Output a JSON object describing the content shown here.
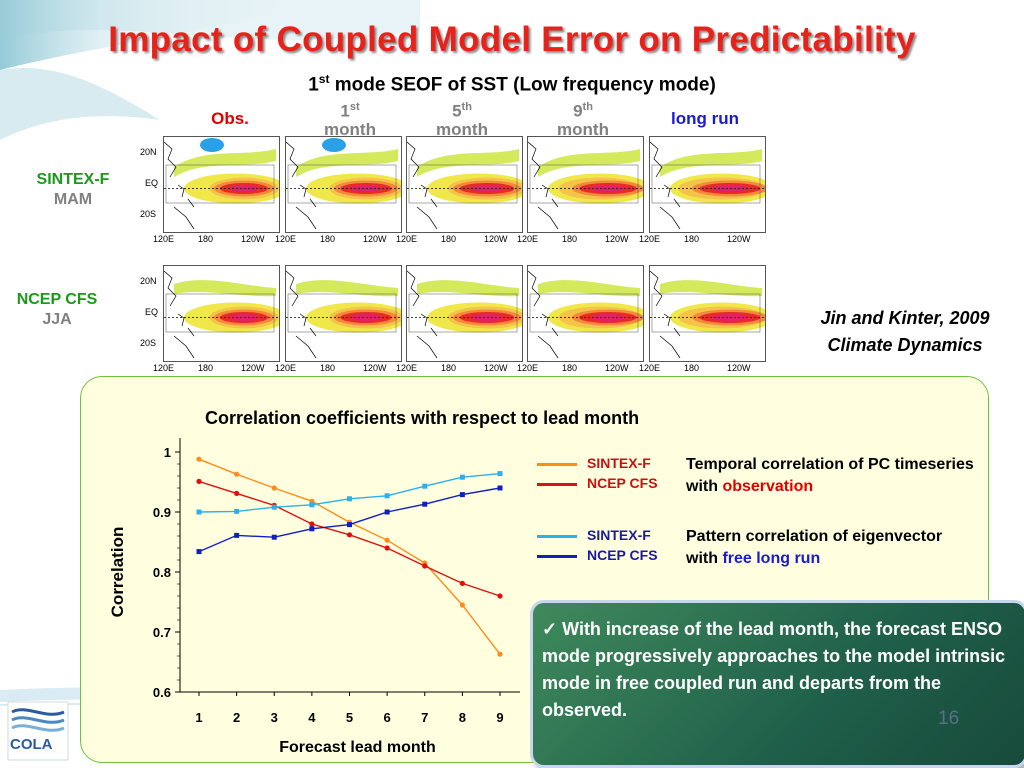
{
  "slide": {
    "title": "Impact of Coupled Model Error on Predictability",
    "subtitle_pre": "1",
    "subtitle_sup": "st",
    "subtitle_post": " mode SEOF of SST (Low frequency mode)",
    "columns": [
      {
        "label": "Obs.",
        "sup": "",
        "line2": "",
        "color": "#e00000"
      },
      {
        "label": "1",
        "sup": "st",
        "line2": "month",
        "color": "#808080"
      },
      {
        "label": "5",
        "sup": "th",
        "line2": "month",
        "color": "#808080"
      },
      {
        "label": "9",
        "sup": "th",
        "line2": "month",
        "color": "#808080"
      },
      {
        "label": "long run",
        "sup": "",
        "line2": "",
        "color": "#1a1ad0"
      }
    ],
    "rows": [
      {
        "name": "SINTEX-F",
        "season": "MAM"
      },
      {
        "name": "NCEP CFS",
        "season": "JJA"
      }
    ],
    "lat_labels": [
      "20N",
      "EQ",
      "20S"
    ],
    "lon_labels": [
      "120E",
      "180",
      "120W"
    ],
    "citation_line1": "Jin and Kinter, 2009",
    "citation_line2": "Climate Dynamics",
    "page_number": "16",
    "logo_text": "COLA"
  },
  "legend": {
    "group1": {
      "s1": "SINTEX-F",
      "s2": "NCEP CFS",
      "note_pre": "Temporal correlation of PC timeseries with ",
      "note_highlight": "observation"
    },
    "group2": {
      "s1": "SINTEX-F",
      "s2": "NCEP CFS",
      "note_pre": "Pattern correlation of eigenvector with ",
      "note_highlight": "free long run"
    }
  },
  "callout": {
    "check": "✓",
    "text": "With increase of the lead month, the forecast ENSO mode progressively approaches to the model intrinsic mode in free coupled run and departs from the observed."
  },
  "colors": {
    "title": "#e8221a",
    "sintex_temporal": "#ff8c1a",
    "ncep_temporal": "#e01010",
    "sintex_pattern": "#2ab0f0",
    "ncep_pattern": "#1020c0",
    "highlight_red": "#e00000",
    "highlight_blue": "#1a1ad0"
  },
  "chart_data": {
    "type": "line",
    "title": "Correlation coefficients with respect to lead month",
    "xlabel": "Forecast lead month",
    "ylabel": "Correlation",
    "x": [
      1,
      2,
      3,
      4,
      5,
      6,
      7,
      8,
      9
    ],
    "ylim": [
      0.6,
      1.0
    ],
    "yticks": [
      "0.6",
      "0.7",
      "0.8",
      "0.9",
      "1"
    ],
    "series": [
      {
        "name": "SINTEX-F",
        "group": "temporal",
        "color": "#ff8c1a",
        "values": [
          0.988,
          0.963,
          0.94,
          0.918,
          0.883,
          0.853,
          0.815,
          0.745,
          0.663
        ]
      },
      {
        "name": "NCEP CFS",
        "group": "temporal",
        "color": "#e01010",
        "values": [
          0.951,
          0.931,
          0.911,
          0.88,
          0.862,
          0.84,
          0.81,
          0.781,
          0.76
        ]
      },
      {
        "name": "SINTEX-F",
        "group": "pattern",
        "color": "#2ab0f0",
        "values": [
          0.9,
          0.901,
          0.908,
          0.912,
          0.922,
          0.927,
          0.943,
          0.958,
          0.964
        ]
      },
      {
        "name": "NCEP CFS",
        "group": "pattern",
        "color": "#1020c0",
        "values": [
          0.834,
          0.861,
          0.858,
          0.872,
          0.879,
          0.9,
          0.913,
          0.929,
          0.94
        ]
      }
    ]
  }
}
